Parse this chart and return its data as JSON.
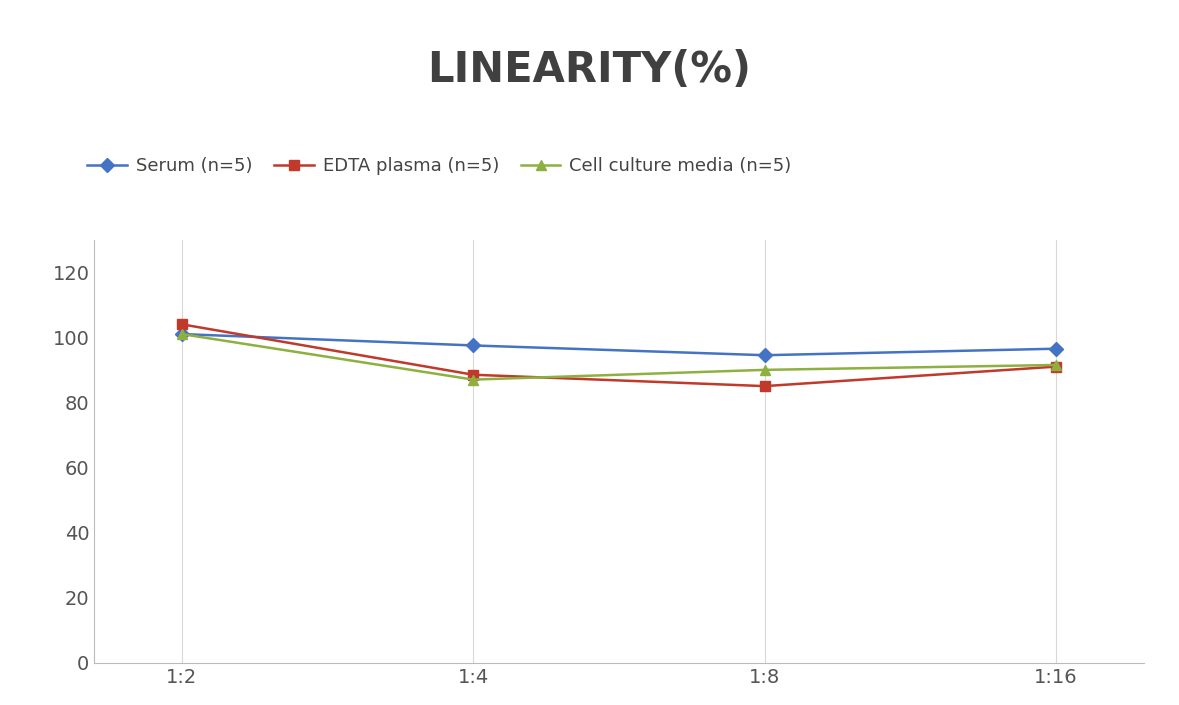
{
  "title": "LINEARITY(%)",
  "title_fontsize": 30,
  "title_fontweight": "bold",
  "title_color": "#404040",
  "x_labels": [
    "1:2",
    "1:4",
    "1:8",
    "1:16"
  ],
  "x_positions": [
    0,
    1,
    2,
    3
  ],
  "series": [
    {
      "label": "Serum (n=5)",
      "values": [
        101.0,
        97.5,
        94.5,
        96.5
      ],
      "color": "#4472C4",
      "marker": "D",
      "markersize": 7,
      "linewidth": 1.8
    },
    {
      "label": "EDTA plasma (n=5)",
      "values": [
        104.0,
        88.5,
        85.0,
        91.0
      ],
      "color": "#C0392B",
      "marker": "s",
      "markersize": 7,
      "linewidth": 1.8
    },
    {
      "label": "Cell culture media (n=5)",
      "values": [
        101.0,
        87.0,
        90.0,
        91.5
      ],
      "color": "#8DB040",
      "marker": "^",
      "markersize": 7,
      "linewidth": 1.8
    }
  ],
  "ylim": [
    0,
    130
  ],
  "yticks": [
    0,
    20,
    40,
    60,
    80,
    100,
    120
  ],
  "grid_color": "#D8D8D8",
  "grid_linestyle": "-",
  "grid_linewidth": 0.8,
  "background_color": "#FFFFFF",
  "legend_fontsize": 13,
  "tick_fontsize": 14,
  "axis_linecolor": "#BBBBBB"
}
